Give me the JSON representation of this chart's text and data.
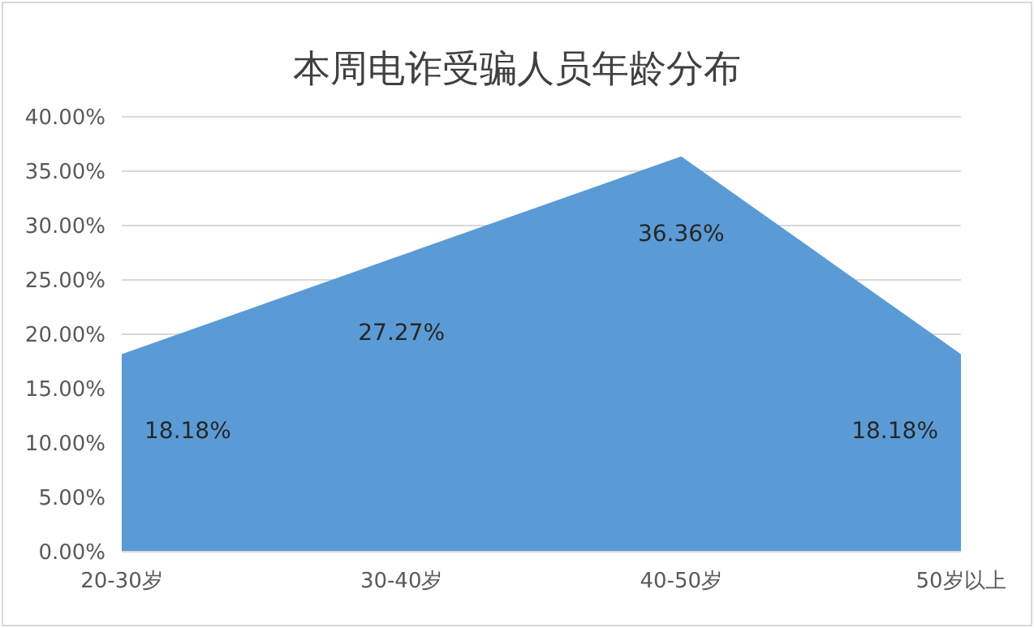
{
  "chart_data": {
    "type": "area",
    "title": "本周电诈受骗人员年龄分布",
    "categories": [
      "20-30岁",
      "30-40岁",
      "40-50岁",
      "50岁以上"
    ],
    "values": [
      18.18,
      27.27,
      36.36,
      18.18
    ],
    "value_labels": [
      "18.18%",
      "27.27%",
      "36.36%",
      "18.18%"
    ],
    "color": "#5b9bd5",
    "ylim": [
      0,
      40
    ],
    "yticks": [
      {
        "value": 0,
        "label": "0.00%"
      },
      {
        "value": 5,
        "label": "5.00%"
      },
      {
        "value": 10,
        "label": "10.00%"
      },
      {
        "value": 15,
        "label": "15.00%"
      },
      {
        "value": 20,
        "label": "20.00%"
      },
      {
        "value": 25,
        "label": "25.00%"
      },
      {
        "value": 30,
        "label": "30.00%"
      },
      {
        "value": 35,
        "label": "35.00%"
      },
      {
        "value": 40,
        "label": "40.00%"
      }
    ],
    "grid": "y"
  }
}
